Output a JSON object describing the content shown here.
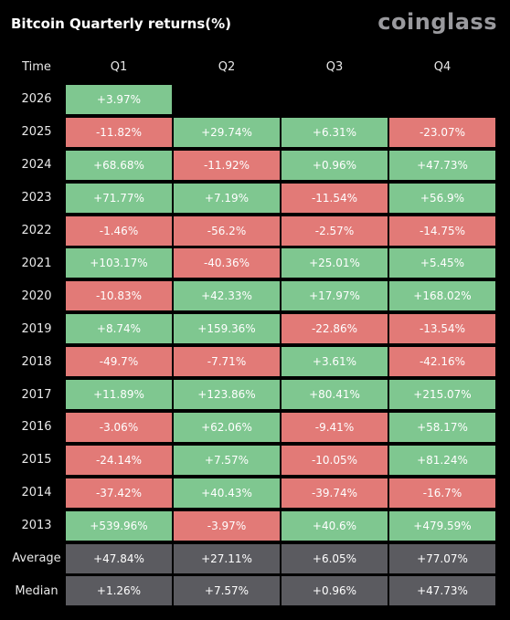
{
  "header": {
    "title": "Bitcoin Quarterly returns(%)",
    "brand": "coinglass"
  },
  "table": {
    "columns": [
      "Time",
      "Q1",
      "Q2",
      "Q3",
      "Q4"
    ],
    "rows": [
      [
        "2026",
        "+3.97%"
      ],
      [
        "2025",
        "-11.82%",
        "+29.74%",
        "+6.31%",
        "-23.07%"
      ],
      [
        "2024",
        "+68.68%",
        "-11.92%",
        "+0.96%",
        "+47.73%"
      ],
      [
        "2023",
        "+71.77%",
        "+7.19%",
        "-11.54%",
        "+56.9%"
      ],
      [
        "2022",
        "-1.46%",
        "-56.2%",
        "-2.57%",
        "-14.75%"
      ],
      [
        "2021",
        "+103.17%",
        "-40.36%",
        "+25.01%",
        "+5.45%"
      ],
      [
        "2020",
        "-10.83%",
        "+42.33%",
        "+17.97%",
        "+168.02%"
      ],
      [
        "2019",
        "+8.74%",
        "+159.36%",
        "-22.86%",
        "-13.54%"
      ],
      [
        "2018",
        "-49.7%",
        "-7.71%",
        "+3.61%",
        "-42.16%"
      ],
      [
        "2017",
        "+11.89%",
        "+123.86%",
        "+80.41%",
        "+215.07%"
      ],
      [
        "2016",
        "-3.06%",
        "+62.06%",
        "-9.41%",
        "+58.17%"
      ],
      [
        "2015",
        "-24.14%",
        "+7.57%",
        "-10.05%",
        "+81.24%"
      ],
      [
        "2014",
        "-37.42%",
        "+40.43%",
        "-39.74%",
        "-16.7%"
      ],
      [
        "2013",
        "+539.96%",
        "-3.97%",
        "+40.6%",
        "+479.59%"
      ]
    ],
    "summary": [
      [
        "Average",
        "+47.84%",
        "+27.11%",
        "+6.05%",
        "+77.07%"
      ],
      [
        "Median",
        "+1.26%",
        "+7.57%",
        "+0.96%",
        "+47.73%"
      ]
    ]
  }
}
